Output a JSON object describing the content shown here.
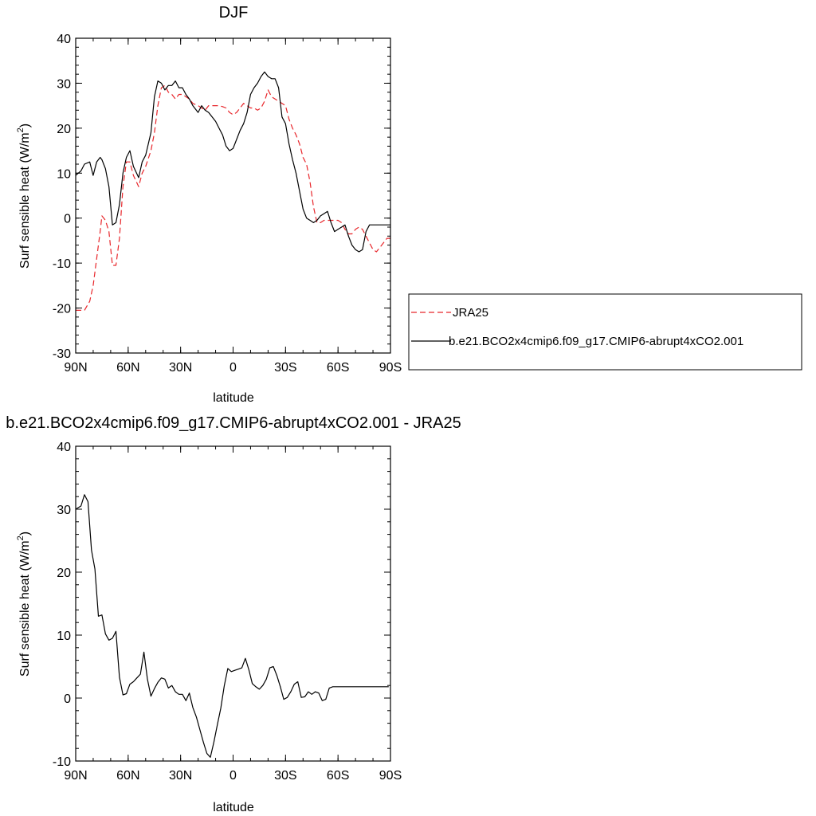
{
  "colors": {
    "obs": "#e8262b",
    "model": "#000000"
  },
  "chart_data": [
    {
      "type": "line",
      "title": "DJF",
      "xlabel": "latitude",
      "ylabel": "Surf sensible heat (W/m",
      "ylabel_sup": "2",
      "ylabel_end": ")",
      "xlim": [
        -90,
        90
      ],
      "ylim": [
        -30,
        40
      ],
      "x_ticks": [
        -90,
        -60,
        -30,
        0,
        30,
        60,
        90
      ],
      "x_tick_labels": [
        "90N",
        "60N",
        "30N",
        "0",
        "30S",
        "60S",
        "90S"
      ],
      "y_ticks": [
        -30,
        -20,
        -10,
        0,
        10,
        20,
        30,
        40
      ],
      "y_tick_labels": [
        "-30",
        "-20",
        "-10",
        "0",
        "10",
        "20",
        "30",
        "40"
      ],
      "legend_position": "right, outside",
      "series": [
        {
          "name": "JRA25",
          "style": "dashed",
          "color": "#e8262b",
          "x": [
            -90,
            -87,
            -85,
            -82,
            -80,
            -78,
            -76,
            -75,
            -73,
            -71,
            -69,
            -67,
            -65,
            -63,
            -61,
            -59,
            -57,
            -54,
            -52,
            -50,
            -47,
            -45,
            -43,
            -41,
            -39,
            -37,
            -35,
            -33,
            -31,
            -29,
            -27,
            -25,
            -23,
            -20,
            -18,
            -16,
            -14,
            -12,
            -10,
            -8,
            -6,
            -4,
            -2,
            0,
            2,
            4,
            6,
            8,
            10,
            12,
            14,
            16,
            18,
            20,
            22,
            24,
            26,
            28,
            30,
            32,
            34,
            36,
            38,
            40,
            42,
            44,
            46,
            48,
            50,
            52,
            54,
            56,
            58,
            60,
            62,
            64,
            66,
            68,
            70,
            72,
            74,
            76,
            78,
            80,
            82,
            84,
            86,
            88,
            90
          ],
          "y": [
            -20.5,
            -20.5,
            -20.5,
            -18.5,
            -15,
            -9,
            -3,
            0.5,
            -0.5,
            -3,
            -10.5,
            -10.5,
            -4.5,
            7,
            12.5,
            12.5,
            9.5,
            7,
            10,
            11.5,
            15,
            19,
            25,
            29,
            29.5,
            28,
            27.5,
            26.5,
            27.5,
            27.5,
            27,
            26.5,
            25.5,
            25,
            24.5,
            24,
            25,
            25,
            25,
            25,
            24.8,
            24.5,
            23.5,
            23,
            23.5,
            24.5,
            25.5,
            25,
            24.5,
            24.5,
            24,
            24.5,
            26,
            28.5,
            27,
            26.5,
            26,
            25.5,
            25,
            22,
            20,
            18.5,
            16.5,
            13.5,
            12,
            8,
            2.5,
            -1,
            -1,
            -0.5,
            -0.5,
            -0.5,
            -0.5,
            -0.5,
            -1,
            -2.5,
            -3.5,
            -3.5,
            -2.5,
            -2,
            -2.5,
            -4,
            -5.5,
            -7,
            -7.5,
            -6.5,
            -5.5,
            -4.5,
            -4.5
          ]
        },
        {
          "name": "b.e21.BCO2x4cmip6.f09_g17.CMIP6-abrupt4xCO2.001",
          "style": "solid",
          "color": "#000000",
          "x": [
            -90,
            -87,
            -85,
            -82,
            -80,
            -78,
            -76,
            -75,
            -73,
            -71,
            -69,
            -67,
            -65,
            -63,
            -61,
            -59,
            -57,
            -54,
            -52,
            -50,
            -47,
            -45,
            -43,
            -41,
            -39,
            -37,
            -35,
            -33,
            -31,
            -29,
            -27,
            -25,
            -23,
            -20,
            -18,
            -16,
            -14,
            -12,
            -10,
            -8,
            -6,
            -4,
            -2,
            0,
            2,
            4,
            6,
            8,
            10,
            12,
            14,
            16,
            18,
            20,
            22,
            24,
            26,
            28,
            30,
            32,
            34,
            36,
            38,
            40,
            42,
            44,
            46,
            48,
            50,
            52,
            54,
            56,
            58,
            60,
            62,
            64,
            66,
            68,
            70,
            72,
            74,
            76,
            78,
            80,
            82,
            84,
            86,
            88,
            90
          ],
          "y": [
            9.5,
            10.5,
            12,
            12.5,
            9.5,
            12.5,
            13.5,
            13,
            11,
            7,
            -1.5,
            -1,
            3,
            10,
            13.5,
            15,
            11.5,
            9,
            12.5,
            14,
            19,
            27,
            30.5,
            30,
            28.5,
            29.5,
            29.5,
            30.5,
            29,
            29,
            27.5,
            26.5,
            25,
            23.5,
            25,
            24,
            23.5,
            22.5,
            21.5,
            20,
            18.5,
            16,
            15,
            15.5,
            17.5,
            19.5,
            21,
            23.5,
            27.5,
            29,
            30,
            31.5,
            32.5,
            31.5,
            31,
            31,
            29,
            22.5,
            21,
            16.5,
            13,
            10,
            6,
            2,
            0,
            -0.5,
            -1,
            -0.5,
            0.5,
            1,
            1.5,
            -1,
            -3,
            -2.5,
            -2,
            -1.5,
            -4,
            -6,
            -7,
            -7.5,
            -7,
            -3,
            -1.5,
            -1.5,
            -1.5,
            -1.5,
            -1.5,
            -1.5,
            -1.5
          ]
        }
      ]
    },
    {
      "type": "line",
      "title": "b.e21.BCO2x4cmip6.f09_g17.CMIP6-abrupt4xCO2.001 - JRA25",
      "xlabel": "latitude",
      "ylabel": "Surf sensible heat (W/m",
      "ylabel_sup": "2",
      "ylabel_end": ")",
      "xlim": [
        -90,
        90
      ],
      "ylim": [
        -10,
        40
      ],
      "x_ticks": [
        -90,
        -60,
        -30,
        0,
        30,
        60,
        90
      ],
      "x_tick_labels": [
        "90N",
        "60N",
        "30N",
        "0",
        "30S",
        "60S",
        "90S"
      ],
      "y_ticks": [
        -10,
        0,
        10,
        20,
        30,
        40
      ],
      "y_tick_labels": [
        "-10",
        "0",
        "10",
        "20",
        "30",
        "40"
      ],
      "series": [
        {
          "name": "",
          "style": "solid",
          "color": "#000000",
          "x": [
            -90,
            -87,
            -85,
            -83,
            -81,
            -79,
            -77,
            -75,
            -73,
            -71,
            -69,
            -67,
            -65,
            -63,
            -61,
            -59,
            -57,
            -55,
            -53,
            -51,
            -49,
            -47,
            -45,
            -43,
            -41,
            -39,
            -37,
            -35,
            -33,
            -31,
            -29,
            -27,
            -25,
            -23,
            -21,
            -19,
            -17,
            -15,
            -13,
            -11,
            -9,
            -7,
            -5,
            -3,
            -1,
            1,
            3,
            5,
            7,
            9,
            11,
            13,
            15,
            17,
            19,
            21,
            23,
            25,
            27,
            29,
            31,
            33,
            35,
            37,
            39,
            41,
            43,
            45,
            47,
            49,
            51,
            53,
            55,
            57,
            59,
            61,
            63,
            65,
            67,
            69,
            71,
            73,
            75,
            77,
            79,
            81,
            83,
            85,
            87,
            89
          ],
          "y": [
            30,
            30.5,
            32.3,
            31.2,
            23.5,
            20.5,
            13,
            13.2,
            10.2,
            9.2,
            9.5,
            10.6,
            3.3,
            0.5,
            0.7,
            2.2,
            2.6,
            3.2,
            3.8,
            7.3,
            3,
            0.3,
            1.5,
            2.5,
            3.2,
            3,
            1.6,
            2,
            1,
            0.6,
            0.6,
            -0.4,
            0.8,
            -1.5,
            -3,
            -5,
            -7,
            -8.8,
            -9.4,
            -7,
            -4.2,
            -1.6,
            2,
            4.7,
            4.2,
            4.4,
            4.6,
            4.8,
            6.3,
            4.5,
            2.3,
            1.8,
            1.4,
            2,
            3,
            4.8,
            5,
            3.6,
            1.8,
            -0.2,
            0.1,
            1,
            2.2,
            2.6,
            0.1,
            0.2,
            1,
            0.6,
            1,
            0.8,
            -0.4,
            -0.2,
            1.6,
            1.8,
            1.8,
            1.8,
            1.8,
            1.8,
            1.8,
            1.8,
            1.8,
            1.8,
            1.8,
            1.8,
            1.8,
            1.8,
            1.8,
            1.8,
            1.8,
            1.8
          ]
        }
      ]
    }
  ]
}
